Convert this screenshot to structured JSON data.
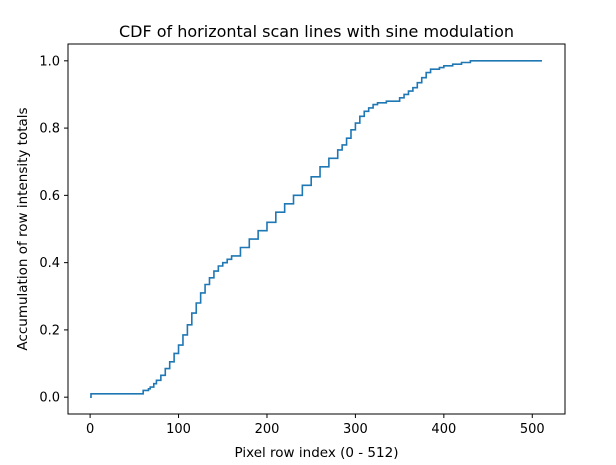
{
  "chart_data": {
    "type": "line",
    "title": "CDF of horizontal scan lines with sine modulation",
    "xlabel": "Pixel row index (0 - 512)",
    "ylabel": "Accumulation of row intensity totals",
    "xlim": [
      -25,
      537
    ],
    "ylim": [
      -0.05,
      1.05
    ],
    "x_ticks": [
      0,
      100,
      200,
      300,
      400,
      500
    ],
    "y_ticks": [
      0.0,
      0.2,
      0.4,
      0.6,
      0.8,
      1.0
    ],
    "x_tick_labels": [
      "0",
      "100",
      "200",
      "300",
      "400",
      "500"
    ],
    "y_tick_labels": [
      "0.0",
      "0.2",
      "0.4",
      "0.6",
      "0.8",
      "1.0"
    ],
    "grid": false,
    "color": "#1f77b4",
    "series": [
      {
        "x": [
          0,
          1,
          10,
          20,
          30,
          40,
          50,
          58,
          60,
          66,
          68,
          72,
          75,
          80,
          85,
          90,
          95,
          100,
          105,
          110,
          115,
          120,
          125,
          130,
          135,
          140,
          145,
          150,
          155,
          160,
          170,
          180,
          190,
          200,
          210,
          220,
          230,
          240,
          250,
          260,
          270,
          280,
          285,
          290,
          295,
          300,
          305,
          310,
          315,
          320,
          325,
          335,
          340,
          350,
          355,
          360,
          365,
          370,
          375,
          380,
          385,
          395,
          400,
          410,
          420,
          430,
          440,
          460,
          480,
          500,
          511
        ],
        "y": [
          0.0,
          0.01,
          0.01,
          0.01,
          0.01,
          0.01,
          0.01,
          0.01,
          0.02,
          0.025,
          0.03,
          0.04,
          0.05,
          0.065,
          0.085,
          0.105,
          0.13,
          0.155,
          0.185,
          0.215,
          0.25,
          0.28,
          0.31,
          0.335,
          0.355,
          0.375,
          0.39,
          0.4,
          0.41,
          0.42,
          0.445,
          0.47,
          0.495,
          0.52,
          0.55,
          0.575,
          0.6,
          0.63,
          0.655,
          0.685,
          0.71,
          0.735,
          0.75,
          0.77,
          0.795,
          0.815,
          0.835,
          0.85,
          0.86,
          0.87,
          0.875,
          0.88,
          0.88,
          0.89,
          0.9,
          0.91,
          0.92,
          0.935,
          0.95,
          0.965,
          0.975,
          0.98,
          0.985,
          0.99,
          0.995,
          1.0,
          1.0,
          1.0,
          1.0,
          1.0,
          1.0
        ]
      }
    ]
  }
}
